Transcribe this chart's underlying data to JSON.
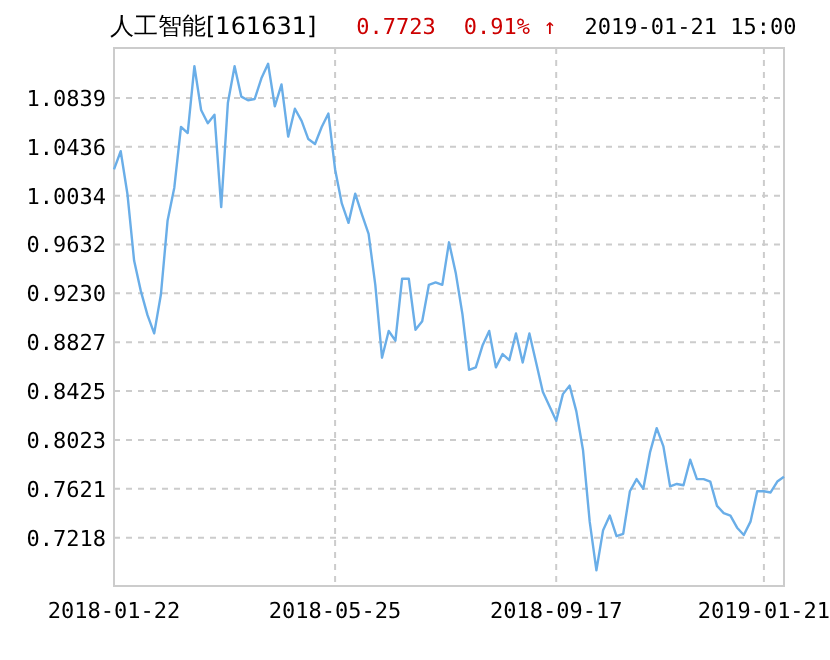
{
  "chart_data": {
    "type": "line",
    "title": "人工智能[161631]",
    "annotations": [
      "0.7723",
      "0.91% ↑",
      "2019-01-21 15:00"
    ],
    "categories": [
      "2018-01-22",
      null,
      null,
      null,
      null,
      null,
      null,
      null,
      null,
      null,
      null,
      null,
      null,
      null,
      null,
      null,
      null,
      null,
      null,
      null,
      null,
      null,
      null,
      null,
      null,
      null,
      null,
      null,
      null,
      null,
      null,
      null,
      null,
      "2018-05-25",
      null,
      null,
      null,
      null,
      null,
      null,
      null,
      null,
      null,
      null,
      null,
      null,
      null,
      null,
      null,
      null,
      null,
      null,
      null,
      null,
      null,
      null,
      null,
      null,
      null,
      null,
      null,
      null,
      null,
      null,
      null,
      null,
      "2018-09-17",
      null,
      null,
      null,
      null,
      null,
      null,
      null,
      null,
      null,
      null,
      null,
      null,
      null,
      null,
      null,
      null,
      null,
      null,
      null,
      null,
      null,
      null,
      null,
      null,
      null,
      null,
      null,
      null,
      null,
      null,
      "2019-01-21",
      null,
      null,
      null
    ],
    "series": [
      {
        "color": "#6aaee8",
        "values": [
          1.025,
          1.04,
          1.005,
          0.95,
          0.925,
          0.905,
          0.89,
          0.922,
          0.983,
          1.01,
          1.06,
          1.055,
          1.11,
          1.074,
          1.063,
          1.07,
          0.994,
          1.08,
          1.11,
          1.085,
          1.082,
          1.083,
          1.1,
          1.112,
          1.077,
          1.095,
          1.052,
          1.075,
          1.065,
          1.05,
          1.046,
          1.06,
          1.071,
          1.025,
          0.997,
          0.981,
          1.005,
          0.988,
          0.972,
          0.93,
          0.87,
          0.892,
          0.884,
          0.935,
          0.935,
          0.893,
          0.9,
          0.93,
          0.932,
          0.93,
          0.965,
          0.94,
          0.906,
          0.86,
          0.862,
          0.88,
          0.892,
          0.862,
          0.873,
          0.868,
          0.89,
          0.866,
          0.89,
          0.866,
          0.842,
          0.83,
          0.818,
          0.84,
          0.847,
          0.826,
          0.794,
          0.735,
          0.695,
          0.728,
          0.74,
          0.723,
          0.725,
          0.76,
          0.77,
          0.762,
          0.792,
          0.812,
          0.797,
          0.764,
          0.766,
          0.765,
          0.786,
          0.77,
          0.77,
          0.768,
          0.748,
          0.742,
          0.74,
          0.73,
          0.724,
          0.735,
          0.76,
          0.76,
          0.759,
          0.768,
          0.772
        ]
      }
    ],
    "ylim": [
      0.682,
      1.125
    ],
    "yticks": [
      {
        "value": 0.7218,
        "label": "0.7218"
      },
      {
        "value": 0.7621,
        "label": "0.7621"
      },
      {
        "value": 0.8023,
        "label": "0.8023"
      },
      {
        "value": 0.8425,
        "label": "0.8425"
      },
      {
        "value": 0.8827,
        "label": "0.8827"
      },
      {
        "value": 0.923,
        "label": "0.9230"
      },
      {
        "value": 0.9632,
        "label": "0.9632"
      },
      {
        "value": 1.0034,
        "label": "1.0034"
      },
      {
        "value": 1.0436,
        "label": "1.0436"
      },
      {
        "value": 1.0839,
        "label": "1.0839"
      }
    ],
    "grid": true
  }
}
